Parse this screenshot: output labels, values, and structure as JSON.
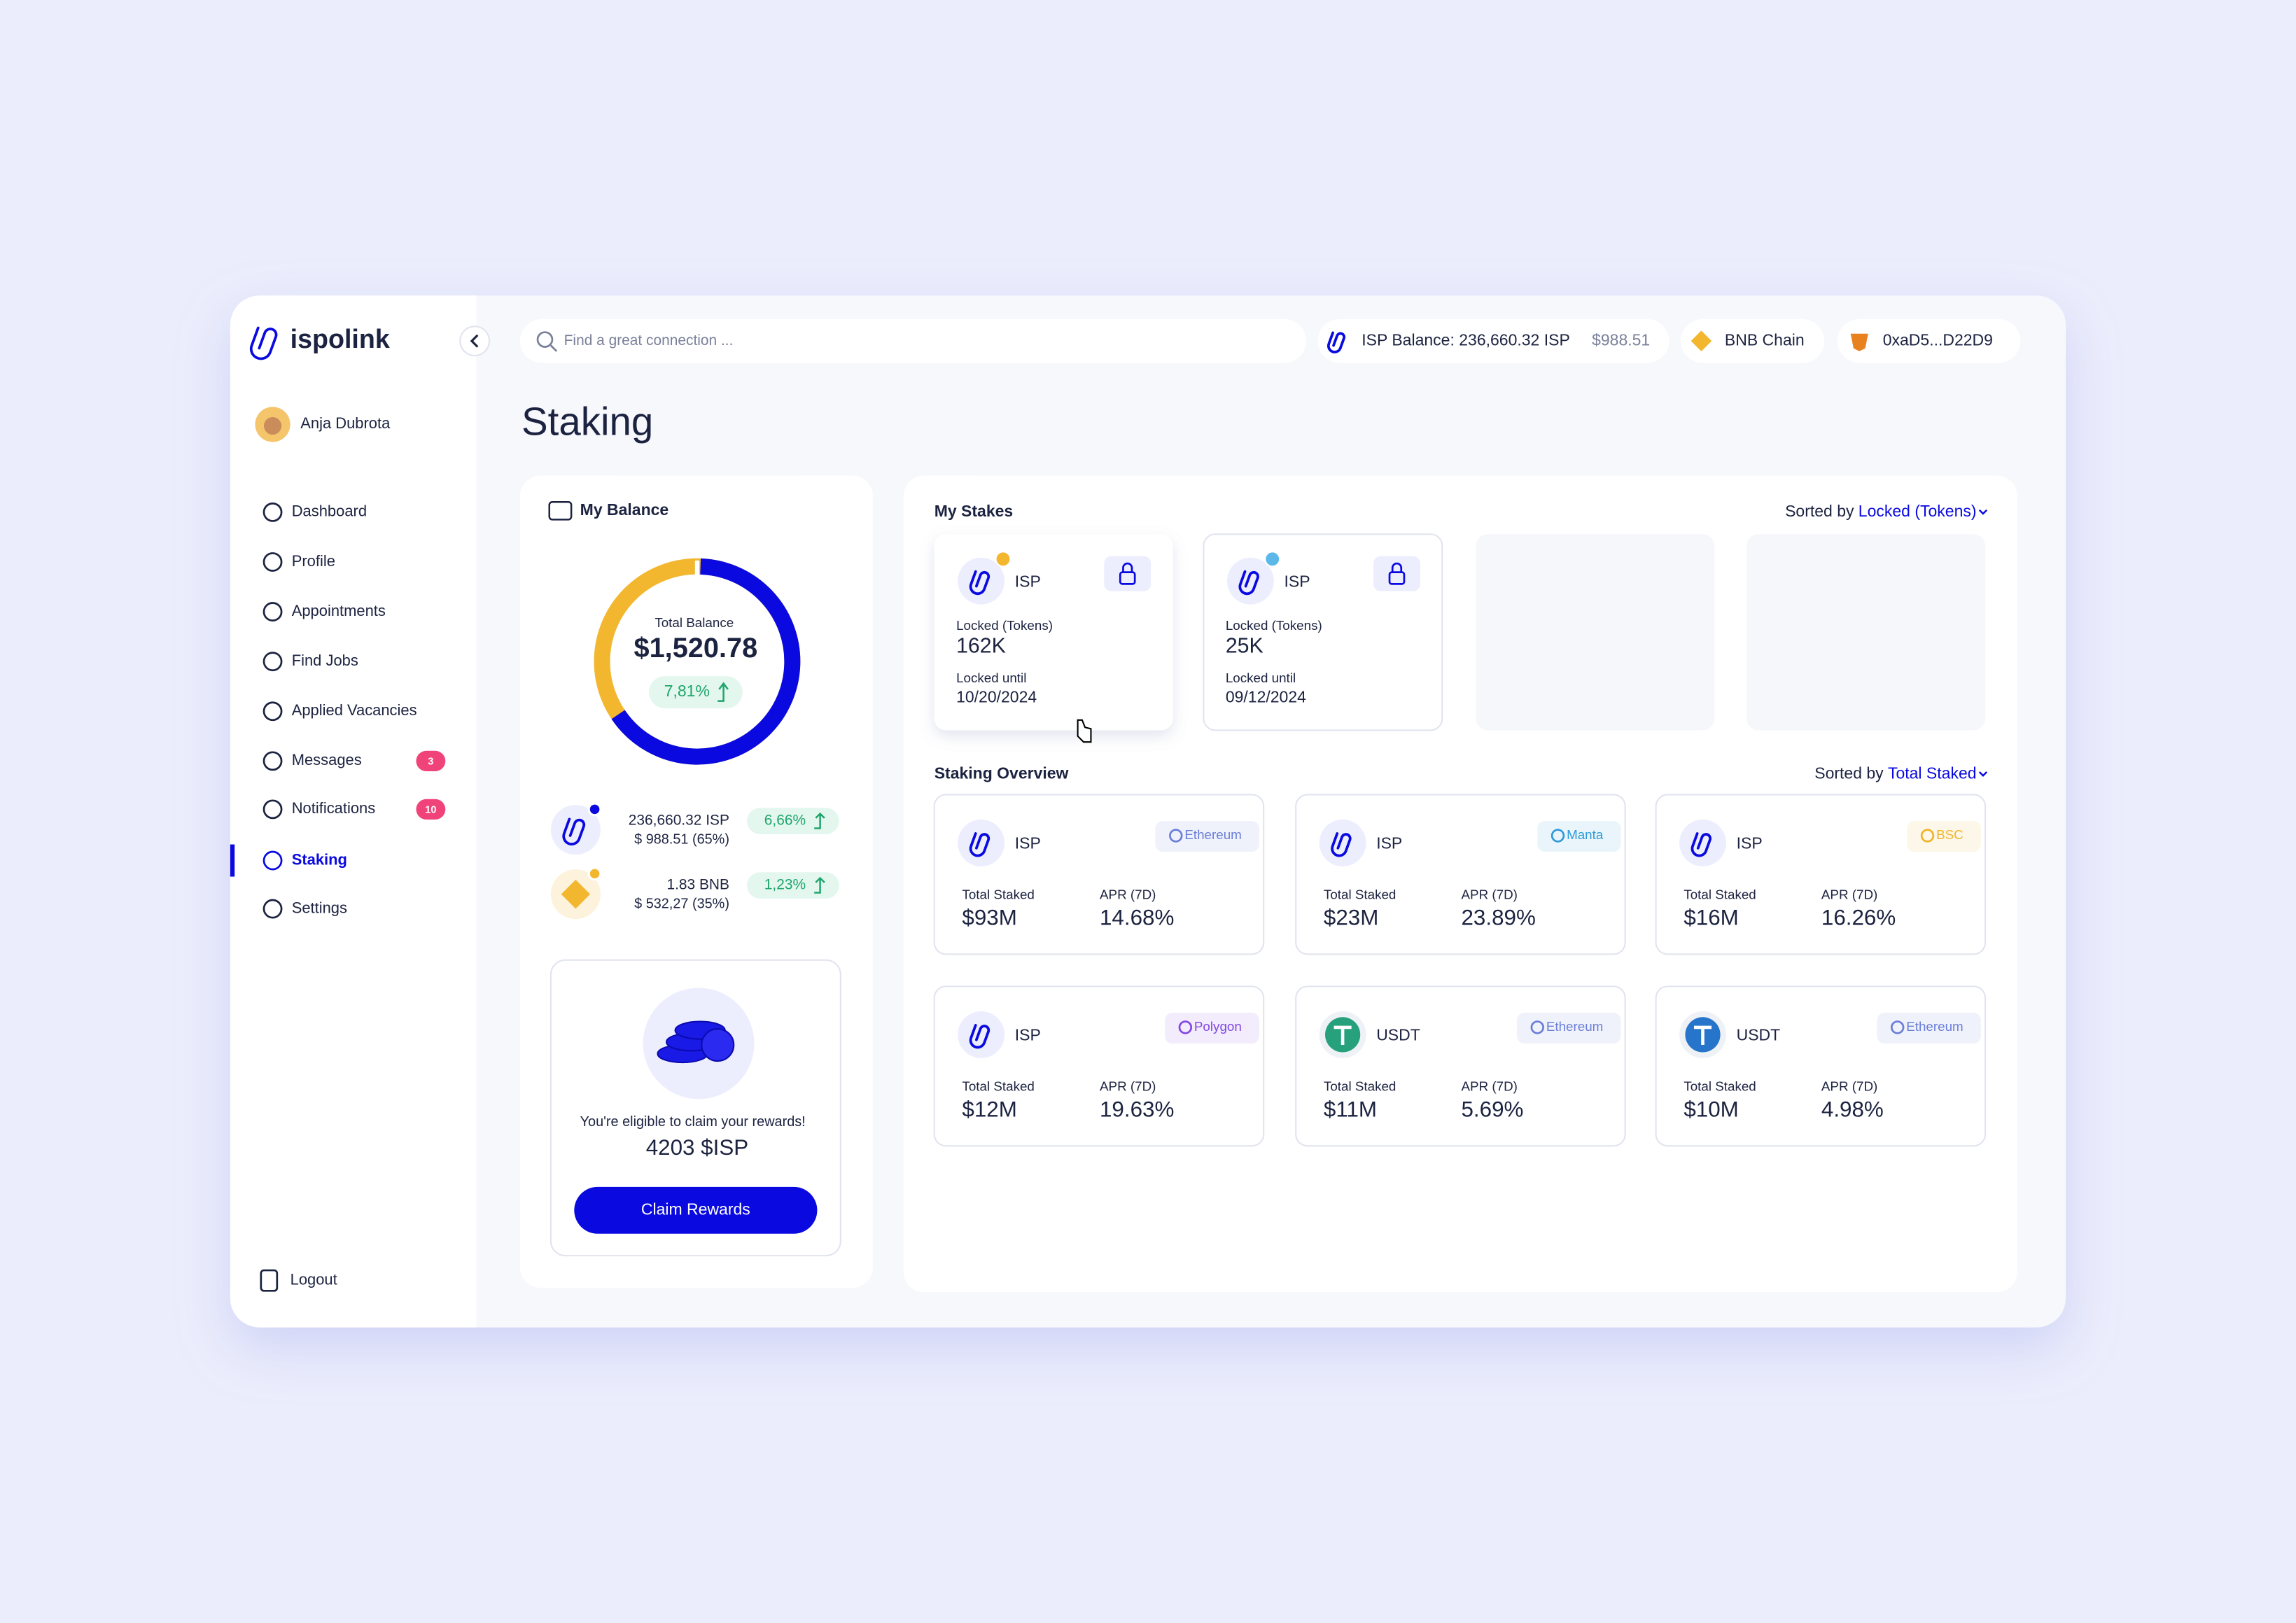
{
  "brand": "ispolink",
  "user": "Anja Dubrota",
  "nav": [
    {
      "label": "Dashboard"
    },
    {
      "label": "Profile"
    },
    {
      "label": "Appointments"
    },
    {
      "label": "Find Jobs"
    },
    {
      "label": "Applied Vacancies"
    },
    {
      "label": "Messages",
      "badge": 3
    },
    {
      "label": "Notifications",
      "badge": 10
    },
    {
      "label": "Staking",
      "active": true
    },
    {
      "label": "Settings"
    }
  ],
  "logout": "Logout",
  "search_placeholder": "Find a great connection ...",
  "header": {
    "balance_label": "ISP Balance: 236,660.32 ISP",
    "balance_usd": "$988.51",
    "chain": "BNB Chain",
    "wallet": "0xaD5...D22D9"
  },
  "page_title": "Staking",
  "my_balance": {
    "title": "My Balance",
    "total_label": "Total Balance",
    "total": "$1,520.78",
    "change": "7,81%",
    "assets": [
      {
        "amount": "236,660.32 ISP",
        "usd": "$ 988.51 (65%)",
        "change": "6,66%",
        "color": "#0a0ae0"
      },
      {
        "amount": "1.83 BNB",
        "usd": "$ 532,27 (35%)",
        "change": "1,23%",
        "color": "#f3b72f"
      }
    ],
    "rewards_text": "You're eligible to claim your rewards!",
    "rewards_amount": "4203 $ISP",
    "button": "Claim Rewards"
  },
  "my_stakes": {
    "title": "My Stakes",
    "sorted_by": "Sorted by",
    "sort_key": "Locked (Tokens)",
    "stakes": [
      {
        "token": "ISP",
        "locked_label": "Locked (Tokens)",
        "locked": "162K",
        "until_label": "Locked until",
        "until": "10/20/2024",
        "chain_color": "#f3b72f"
      },
      {
        "token": "ISP",
        "locked_label": "Locked (Tokens)",
        "locked": "25K",
        "until_label": "Locked until",
        "until": "09/12/2024",
        "chain_color": "#5bb8e8"
      }
    ]
  },
  "staking_overview": {
    "title": "Staking Overview",
    "sorted_by": "Sorted by",
    "sort_key": "Total Staked",
    "pools": [
      {
        "token": "ISP",
        "network": "Ethereum",
        "network_color": "#6a7ed8",
        "total_label": "Total Staked",
        "total": "$93M",
        "apr_label": "APR (7D)",
        "apr": "14.68%"
      },
      {
        "token": "ISP",
        "network": "Manta",
        "network_color": "#2f9bd8",
        "total_label": "Total Staked",
        "total": "$23M",
        "apr_label": "APR (7D)",
        "apr": "23.89%"
      },
      {
        "token": "ISP",
        "network": "BSC",
        "network_color": "#f0b429",
        "total_label": "Total Staked",
        "total": "$16M",
        "apr_label": "APR (7D)",
        "apr": "16.26%"
      },
      {
        "token": "ISP",
        "network": "Polygon",
        "network_color": "#8247e5",
        "total_label": "Total Staked",
        "total": "$12M",
        "apr_label": "APR (7D)",
        "apr": "19.63%"
      },
      {
        "token": "USDT",
        "icon_color": "#26a17b",
        "network": "Ethereum",
        "network_color": "#6a7ed8",
        "total_label": "Total Staked",
        "total": "$11M",
        "apr_label": "APR (7D)",
        "apr": "5.69%"
      },
      {
        "token": "USDT",
        "icon_color": "#2775ca",
        "network": "Ethereum",
        "network_color": "#6a7ed8",
        "total_label": "Total Staked",
        "total": "$10M",
        "apr_label": "APR (7D)",
        "apr": "4.98%"
      }
    ]
  }
}
